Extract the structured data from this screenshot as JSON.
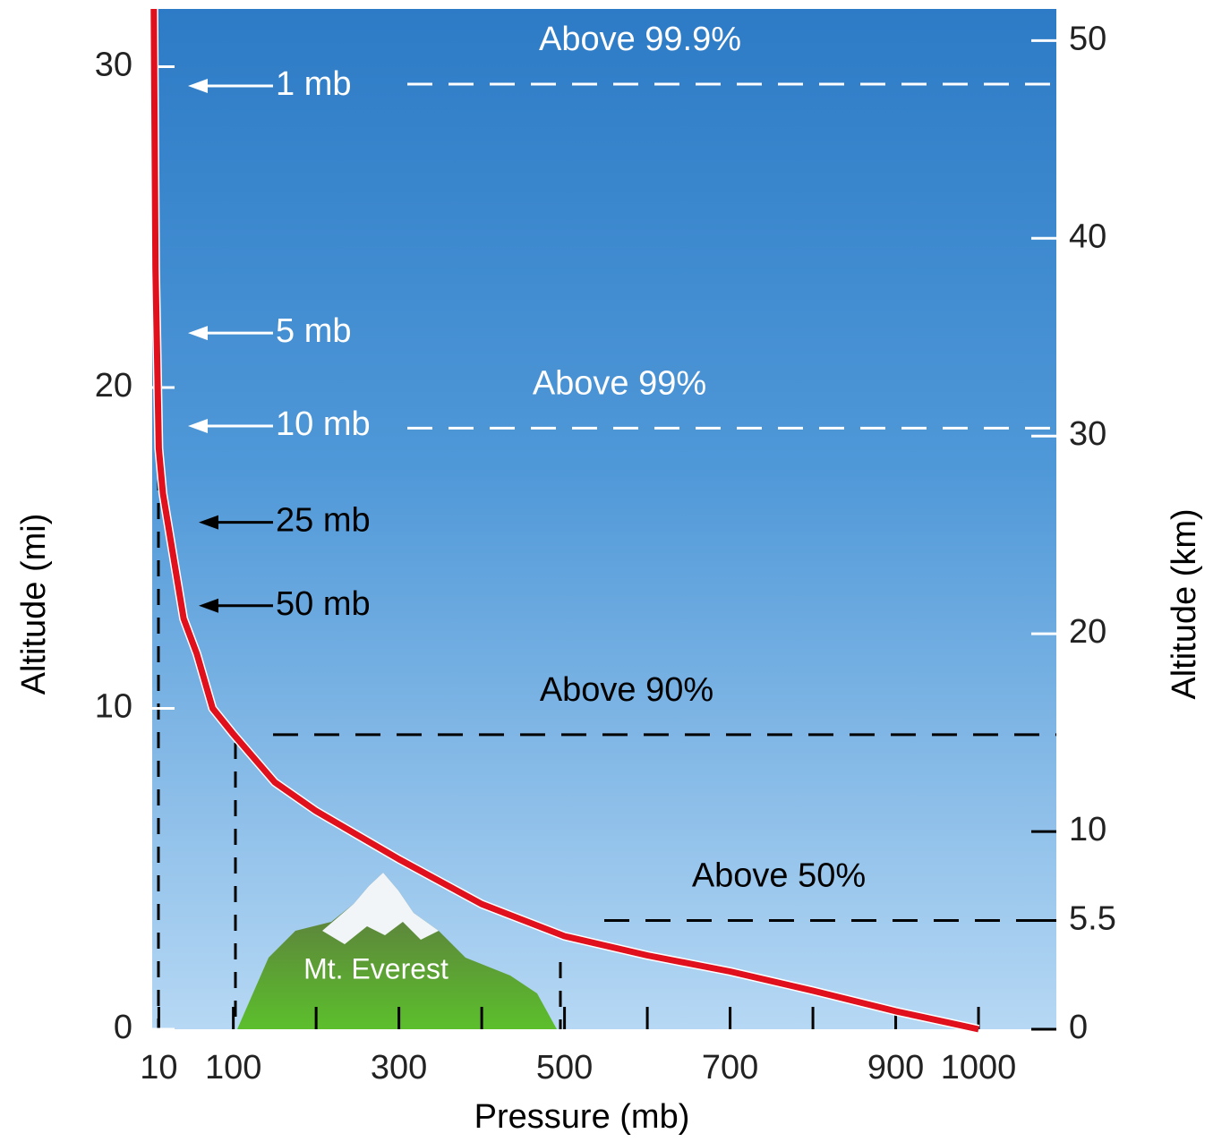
{
  "chart_data": {
    "type": "line",
    "xlabel": "Pressure (mb)",
    "ylabel": "Altitude (mi)",
    "y2label": "Altitude (km)",
    "xlim": [
      2,
      1094
    ],
    "xticks": [
      10,
      100,
      300,
      500,
      700,
      900,
      1000
    ],
    "xminor": [
      200,
      400,
      600,
      800
    ],
    "ylim": [
      0,
      31.8
    ],
    "yticks": [
      0,
      10,
      20,
      30
    ],
    "y2lim": [
      0,
      51.6
    ],
    "y2ticks": [
      0,
      5.5,
      10,
      20,
      30,
      40,
      50
    ],
    "series": [
      {
        "color": "#e0101c",
        "x": [
          1000,
          900,
          800,
          700,
          600,
          500,
          400,
          300,
          200,
          150,
          100,
          75,
          56,
          40,
          24,
          15,
          10,
          6,
          4
        ],
        "values": [
          0,
          0.56,
          1.2,
          1.8,
          2.3,
          2.9,
          3.9,
          5.3,
          6.8,
          7.7,
          9.2,
          10.0,
          11.7,
          12.8,
          15.3,
          16.7,
          18.1,
          23.7,
          31.8
        ]
      }
    ],
    "annotations": [
      {
        "text": "1 mb",
        "y": 29.4,
        "color": "#ffffff"
      },
      {
        "text": "5 mb",
        "y": 21.7,
        "color": "#ffffff"
      },
      {
        "text": "10 mb",
        "y": 18.8,
        "color": "#ffffff"
      },
      {
        "text": "25 mb",
        "y": 15.8,
        "color": "#000000"
      },
      {
        "text": "50 mb",
        "y": 13.2,
        "color": "#000000"
      }
    ],
    "levels": [
      {
        "text": "Above 99.9%",
        "y2": 47.8,
        "color": "#ffffff"
      },
      {
        "text": "Above 99%",
        "y2": 30.4,
        "color": "#ffffff"
      },
      {
        "text": "Above 90%",
        "y2": 14.9,
        "color": "#000000"
      },
      {
        "text": "Above 50%",
        "y2": 5.5,
        "color": "#000000"
      }
    ],
    "mountain_label": "Mt. Everest"
  }
}
